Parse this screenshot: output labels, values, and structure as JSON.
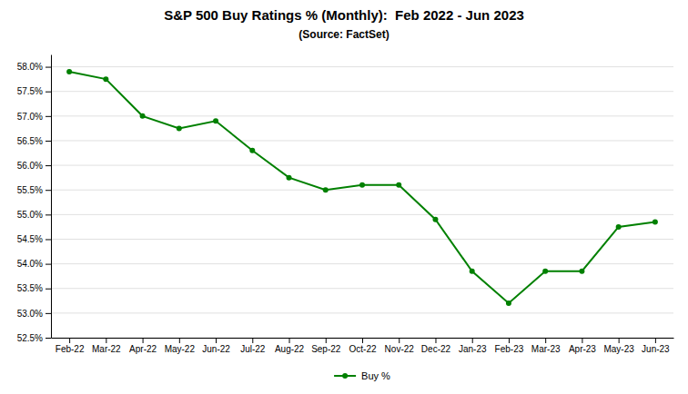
{
  "chart_data": {
    "type": "line",
    "title": "S&P 500 Buy Ratings % (Monthly):  Feb 2022 - Jun 2023",
    "subtitle": "(Source: FactSet)",
    "categories": [
      "Feb-22",
      "Mar-22",
      "Apr-22",
      "May-22",
      "Jun-22",
      "Jul-22",
      "Aug-22",
      "Sep-22",
      "Oct-22",
      "Nov-22",
      "Dec-22",
      "Jan-23",
      "Feb-23",
      "Mar-23",
      "Apr-23",
      "May-23",
      "Jun-23"
    ],
    "series": [
      {
        "name": "Buy %",
        "color": "#008000",
        "marker": "circle",
        "values": [
          57.9,
          57.75,
          57.0,
          56.75,
          56.9,
          56.3,
          55.75,
          55.5,
          55.6,
          55.6,
          54.9,
          53.85,
          53.2,
          53.85,
          53.85,
          54.75,
          54.85
        ]
      }
    ],
    "ylim": [
      52.5,
      58.25
    ],
    "yticks": [
      {
        "value": 52.5,
        "label": "52.5%"
      },
      {
        "value": 53.0,
        "label": "53.0%"
      },
      {
        "value": 53.5,
        "label": "53.5%"
      },
      {
        "value": 54.0,
        "label": "54.0%"
      },
      {
        "value": 54.5,
        "label": "54.5%"
      },
      {
        "value": 55.0,
        "label": "55.0%"
      },
      {
        "value": 55.5,
        "label": "55.5%"
      },
      {
        "value": 56.0,
        "label": "56.0%"
      },
      {
        "value": 56.5,
        "label": "56.5%"
      },
      {
        "value": 57.0,
        "label": "57.0%"
      },
      {
        "value": 57.5,
        "label": "57.5%"
      },
      {
        "value": 58.0,
        "label": "58.0%"
      }
    ],
    "grid": true,
    "legend": "bottom"
  }
}
